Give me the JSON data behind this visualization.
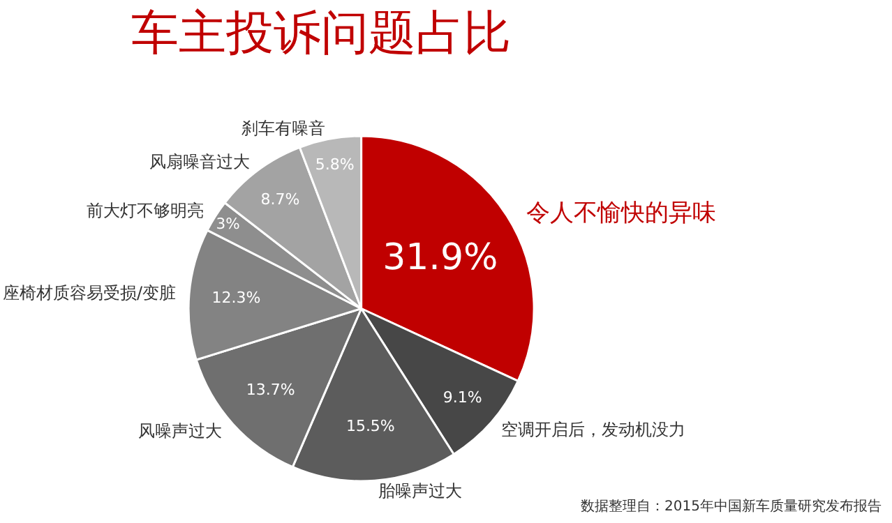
{
  "chart_data": {
    "type": "pie",
    "title": "车主投诉问题占比",
    "categories": [
      "令人不愉快的异味",
      "空调开启后，发动机没力",
      "胎噪声过大",
      "风噪声过大",
      "座椅材质容易受损/变脏",
      "前大灯不够明亮",
      "风扇噪音过大",
      "刹车有噪音"
    ],
    "values": [
      31.9,
      9.1,
      15.5,
      13.7,
      12.3,
      3,
      8.7,
      5.8
    ],
    "value_labels": [
      "31.9%",
      "9.1%",
      "15.5%",
      "13.7%",
      "12.3%",
      "3%",
      "8.7%",
      "5.8%"
    ],
    "colors": [
      "#c00000",
      "#474747",
      "#5c5c5c",
      "#6f6f6f",
      "#838383",
      "#8e8e8e",
      "#a3a3a3",
      "#b8b8b8"
    ],
    "annotations": [
      "数据整理自：2015年中国新车质量研究发布报告"
    ],
    "legend": false
  }
}
